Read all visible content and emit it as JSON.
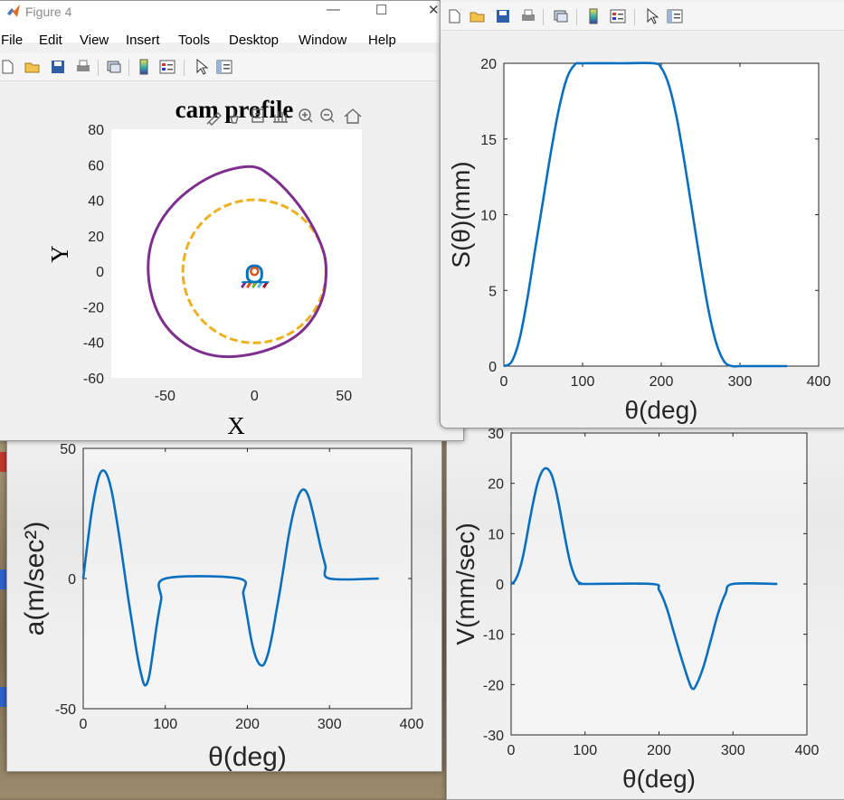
{
  "figure_title": "Figure 4",
  "menu": [
    "File",
    "Edit",
    "View",
    "Insert",
    "Tools",
    "Desktop",
    "Window",
    "Help"
  ],
  "window_controls": {
    "minimize": "—",
    "maximize": "☐",
    "close": "✕"
  },
  "colors": {
    "line": "#0a6fbf",
    "cam_profile": "#7e2f8e",
    "base_circle": "#edb120",
    "follower_blue": "#0072bd",
    "follower_orange": "#d95319"
  },
  "icons": [
    "new-file-icon",
    "open-folder-icon",
    "save-icon",
    "print-icon",
    "link-icon",
    "colorbar-icon",
    "legend-icon",
    "pointer-icon",
    "property-inspector-icon"
  ],
  "axes_toolbar_icons": [
    "brush-edit-icon",
    "data-brush-icon",
    "data-tips-icon",
    "pan-hand-icon",
    "zoom-in-icon",
    "zoom-out-icon",
    "home-restore-icon"
  ],
  "cam_plot": {
    "title": "cam profile",
    "xlabel": "X",
    "ylabel": "Y",
    "xticks": [
      "-50",
      "0",
      "50"
    ],
    "yticks": [
      "80",
      "60",
      "40",
      "20",
      "0",
      "-20",
      "-40",
      "-60"
    ]
  },
  "chart_data": [
    {
      "type": "line",
      "name": "displacement",
      "title": "",
      "xlabel": "θ(deg)",
      "ylabel": "S(θ)(mm)",
      "xlim": [
        0,
        400
      ],
      "ylim": [
        0,
        20
      ],
      "xticks": [
        "0",
        "100",
        "200",
        "300",
        "400"
      ],
      "yticks": [
        "0",
        "5",
        "10",
        "15",
        "20"
      ],
      "x": [
        0,
        10,
        20,
        30,
        40,
        50,
        60,
        70,
        80,
        90,
        100,
        150,
        190,
        200,
        210,
        220,
        230,
        240,
        250,
        260,
        270,
        280,
        290,
        300,
        330,
        360
      ],
      "y": [
        0,
        0.3,
        1.8,
        4.5,
        7.8,
        11.0,
        14.2,
        17.0,
        19.0,
        19.9,
        20,
        20,
        20,
        19.7,
        18.5,
        16.3,
        13.3,
        10.0,
        6.7,
        3.7,
        1.5,
        0.3,
        0,
        0,
        0,
        0
      ]
    },
    {
      "type": "line",
      "name": "acceleration",
      "title": "",
      "xlabel": "θ(deg)",
      "ylabel": "a(m/sec²)",
      "xlim": [
        0,
        400
      ],
      "ylim": [
        -50,
        50
      ],
      "xticks": [
        "0",
        "100",
        "200",
        "300",
        "400"
      ],
      "yticks": [
        "50",
        "0",
        "-50"
      ],
      "x": [
        0,
        5,
        10,
        15,
        20,
        25,
        30,
        35,
        40,
        45,
        50,
        55,
        60,
        65,
        70,
        75,
        80,
        85,
        90,
        95,
        100,
        190,
        195,
        200,
        205,
        210,
        215,
        220,
        225,
        230,
        235,
        240,
        245,
        250,
        255,
        260,
        265,
        270,
        275,
        280,
        285,
        290,
        295,
        300,
        360
      ],
      "y": [
        0,
        13,
        25,
        34,
        40,
        41.5,
        39,
        33,
        24,
        14,
        3,
        -8,
        -18,
        -28,
        -36,
        -41,
        -38,
        -28,
        -17,
        -8,
        0,
        0,
        -6,
        -15,
        -24,
        -30,
        -33,
        -33,
        -29,
        -22,
        -13,
        -4,
        6,
        16,
        24,
        30,
        33.5,
        34,
        31,
        25,
        18,
        11,
        5,
        0,
        0
      ]
    },
    {
      "type": "line",
      "name": "velocity",
      "title": "",
      "xlabel": "θ(deg)",
      "ylabel": "V(mm/sec)",
      "xlim": [
        0,
        400
      ],
      "ylim": [
        -30,
        30
      ],
      "xticks": [
        "0",
        "100",
        "200",
        "300",
        "400"
      ],
      "yticks": [
        "30",
        "20",
        "10",
        "0",
        "-10",
        "-20",
        "-30"
      ],
      "x": [
        0,
        5,
        10,
        15,
        20,
        25,
        30,
        35,
        40,
        45,
        50,
        55,
        60,
        65,
        70,
        75,
        80,
        85,
        90,
        95,
        100,
        190,
        200,
        210,
        220,
        230,
        240,
        245,
        250,
        260,
        270,
        280,
        290,
        300,
        360
      ],
      "y": [
        0,
        0.6,
        2.2,
        4.8,
        8.4,
        12.5,
        16.3,
        19.6,
        21.8,
        22.9,
        22.8,
        21.6,
        19.0,
        15.5,
        11.5,
        7.6,
        4.2,
        1.9,
        0.5,
        0.1,
        0,
        0,
        -1.2,
        -4.6,
        -9.6,
        -14.6,
        -19.2,
        -20.8,
        -20.2,
        -16.5,
        -11.2,
        -5.8,
        -1.9,
        0,
        0
      ]
    }
  ]
}
